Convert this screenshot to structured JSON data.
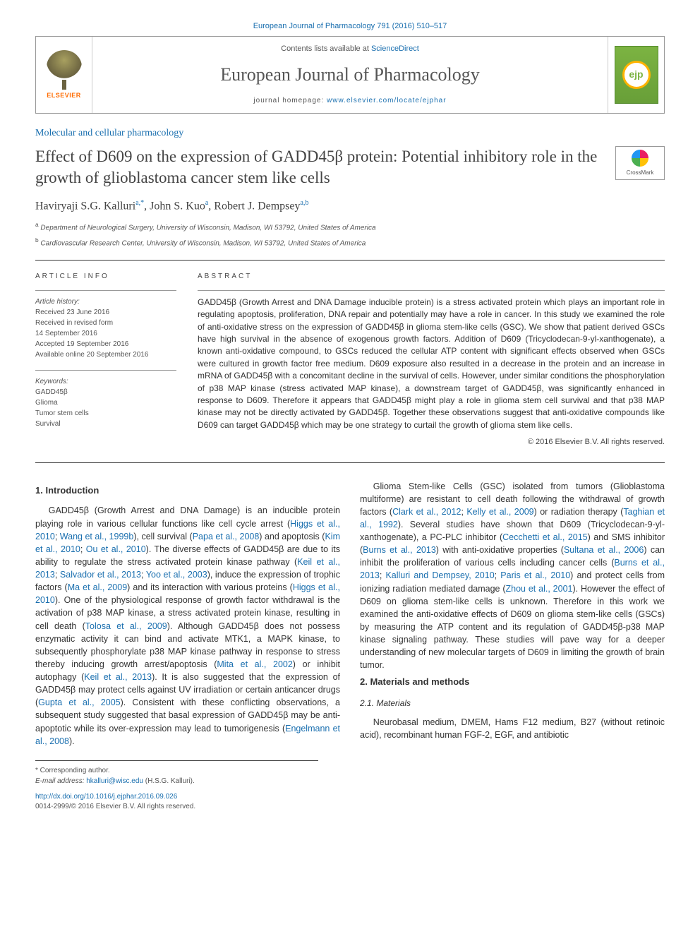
{
  "top_link": {
    "journal": "European Journal of Pharmacology",
    "issue": "791 (2016) 510–517"
  },
  "header": {
    "contents_prefix": "Contents lists available at ",
    "contents_link": "ScienceDirect",
    "journal_name": "European Journal of Pharmacology",
    "homepage_prefix": "journal homepage: ",
    "homepage_url": "www.elsevier.com/locate/ejphar",
    "elsevier": "ELSEVIER",
    "cover_mono": "ejp"
  },
  "section_label": "Molecular and cellular pharmacology",
  "title": "Effect of D609 on the expression of GADD45β protein: Potential inhibitory role in the growth of glioblastoma cancer stem like cells",
  "crossmark": "CrossMark",
  "authors": {
    "a1": {
      "name": "Haviryaji S.G. Kalluri",
      "sup": "a,*"
    },
    "a2": {
      "name": "John S. Kuo",
      "sup": "a"
    },
    "a3": {
      "name": "Robert J. Dempsey",
      "sup": "a,b"
    }
  },
  "affiliations": {
    "a": "Department of Neurological Surgery, University of Wisconsin, Madison, WI 53792, United States of America",
    "b": "Cardiovascular Research Center, University of Wisconsin, Madison, WI 53792, United States of America"
  },
  "article_info": {
    "head": "ARTICLE INFO",
    "history_lead": "Article history:",
    "received": "Received 23 June 2016",
    "revised1": "Received in revised form",
    "revised2": "14 September 2016",
    "accepted": "Accepted 19 September 2016",
    "online": "Available online 20 September 2016",
    "keywords_lead": "Keywords:",
    "kw1": "GADD45β",
    "kw2": "Glioma",
    "kw3": "Tumor stem cells",
    "kw4": "Survival"
  },
  "abstract": {
    "head": "ABSTRACT",
    "text": "GADD45β (Growth Arrest and DNA Damage inducible protein) is a stress activated protein which plays an important role in regulating apoptosis, proliferation, DNA repair and potentially may have a role in cancer. In this study we examined the role of anti-oxidative stress on the expression of GADD45β in glioma stem-like cells (GSC). We show that patient derived GSCs have high survival in the absence of exogenous growth factors. Addition of D609 (Tricyclodecan-9-yl-xanthogenate), a known anti-oxidative compound, to GSCs reduced the cellular ATP content with significant effects observed when GSCs were cultured in growth factor free medium. D609 exposure also resulted in a decrease in the protein and an increase in mRNA of GADD45β with a concomitant decline in the survival of cells. However, under similar conditions the phosphorylation of p38 MAP kinase (stress activated MAP kinase), a downstream target of GADD45β, was significantly enhanced in response to D609. Therefore it appears that GADD45β might play a role in glioma stem cell survival and that p38 MAP kinase may not be directly activated by GADD45β. Together these observations suggest that anti-oxidative compounds like D609 can target GADD45β which may be one strategy to curtail the growth of glioma stem like cells.",
    "copyright": "© 2016 Elsevier B.V. All rights reserved."
  },
  "body": {
    "intro_head": "1. Introduction",
    "intro_p1a": "GADD45β (Growth Arrest and DNA Damage) is an inducible protein playing role in various cellular functions like cell cycle arrest (",
    "intro_r1": "Higgs et al., 2010",
    "intro_p1b": "; ",
    "intro_r2": "Wang et al., 1999b",
    "intro_p1c": "), cell survival (",
    "intro_r3": "Papa et al., 2008",
    "intro_p1d": ") and apoptosis (",
    "intro_r4": "Kim et al., 2010",
    "intro_p1e": "; ",
    "intro_r5": "Ou et al., 2010",
    "intro_p1f": "). The diverse effects of GADD45β are due to its ability to regulate the stress activated protein kinase pathway (",
    "intro_r6": "Keil et al., 2013",
    "intro_p1g": "; ",
    "intro_r7": "Salvador et al., 2013",
    "intro_p1h": "; ",
    "intro_r8": "Yoo et al., 2003",
    "intro_p1i": "), induce the expression of trophic factors (",
    "intro_r9": "Ma et al., 2009",
    "intro_p1j": ") and its interaction with various proteins (",
    "intro_r10": "Higgs et al., 2010",
    "intro_p1k": "). One of the physiological response of growth factor withdrawal is the activation of p38 MAP kinase, a stress activated protein kinase, resulting in cell death (",
    "intro_r11": "Tolosa et al., 2009",
    "intro_p1l": "). Although GADD45β does not possess enzymatic activity it can bind and activate MTK1, a MAPK kinase, to subsequently phosphorylate p38 MAP kinase pathway in response to stress thereby inducing growth arrest/apoptosis (",
    "intro_r12": "Mita et al., 2002",
    "intro_p1m": ") or inhibit autophagy (",
    "intro_r13": "Keil et al., 2013",
    "intro_p1n": "). It is also suggested that the expression of GADD45β may protect cells against UV irradiation or certain anticancer drugs (",
    "intro_r14": "Gupta et al., 2005",
    "intro_p1o": "). Consistent with these conflicting observations, a subsequent study suggested that basal ",
    "intro_p2a": "expression of GADD45β may be anti-apoptotic while its over-expression may lead to tumorigenesis (",
    "intro_r15": "Engelmann et al., 2008",
    "intro_p2b": ").",
    "intro_p3a": "Glioma Stem-like Cells (GSC) isolated from tumors (Glioblastoma multiforme) are resistant to cell death following the withdrawal of growth factors (",
    "intro_r16": "Clark et al., 2012",
    "intro_p3b": "; ",
    "intro_r17": "Kelly et al., 2009",
    "intro_p3c": ") or radiation therapy (",
    "intro_r18": "Taghian et al., 1992",
    "intro_p3d": "). Several studies have shown that D609 (Tricyclodecan-9-yl-xanthogenate), a PC-PLC inhibitor (",
    "intro_r19": "Cecchetti et al., 2015",
    "intro_p3e": ") and SMS inhibitor (",
    "intro_r20": "Burns et al., 2013",
    "intro_p3f": ") with anti-oxidative properties (",
    "intro_r21": "Sultana et al., 2006",
    "intro_p3g": ") can inhibit the proliferation of various cells including cancer cells (",
    "intro_r22": "Burns et al., 2013",
    "intro_p3h": "; ",
    "intro_r23": "Kalluri and Dempsey, 2010",
    "intro_p3i": "; ",
    "intro_r24": "Paris et al., 2010",
    "intro_p3j": ") and protect cells from ionizing radiation mediated damage (",
    "intro_r25": "Zhou et al., 2001",
    "intro_p3k": "). However the effect of D609 on glioma stem-like cells is unknown. Therefore in this work we examined the anti-oxidative effects of D609 on glioma stem-like cells (GSCs) by measuring the ATP content and its regulation of GADD45β-p38 MAP kinase signaling pathway. These studies will pave way for a deeper understanding of new molecular targets of D609 in limiting the growth of brain tumor.",
    "methods_head": "2. Materials and methods",
    "materials_subhead": "2.1. Materials",
    "materials_p": "Neurobasal medium, DMEM, Hams F12 medium, B27 (without retinoic acid), recombinant human FGF-2, EGF, and antibiotic"
  },
  "footnotes": {
    "corr": "* Corresponding author.",
    "email_label": "E-mail address: ",
    "email": "hkalluri@wisc.edu",
    "email_name": " (H.S.G. Kalluri)."
  },
  "doi": "http://dx.doi.org/10.1016/j.ejphar.2016.09.026",
  "issn": "0014-2999/© 2016 Elsevier B.V. All rights reserved.",
  "colors": {
    "link": "#1a6faf",
    "text": "#333333",
    "muted": "#555555",
    "elsevier_orange": "#ff6b00",
    "cover_green": "#7cb342",
    "cover_yellow": "#ffb300"
  }
}
